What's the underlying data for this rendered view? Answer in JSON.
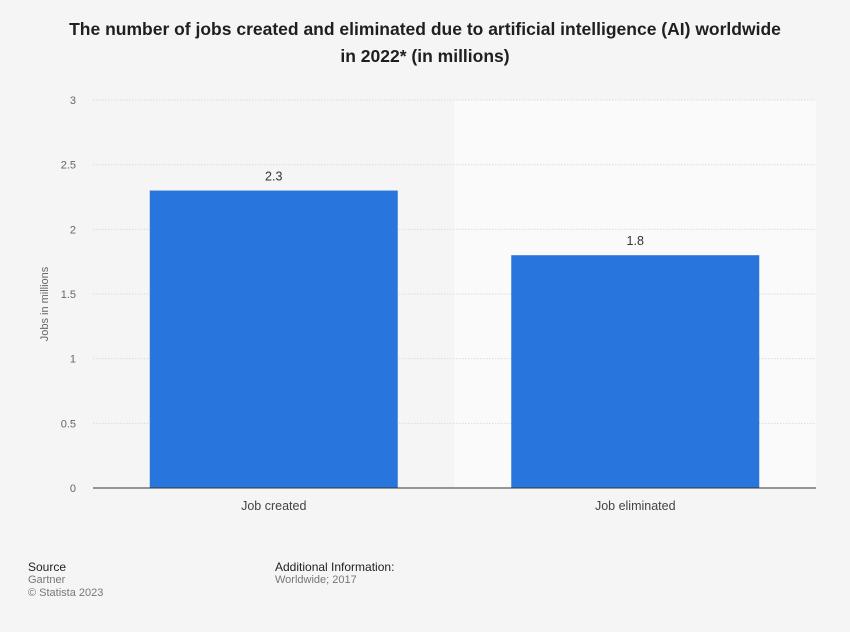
{
  "chart_data": {
    "type": "bar",
    "title": [
      "The number of jobs created and eliminated due to artificial intelligence (AI) worldwide",
      "in 2022* (in millions)"
    ],
    "categories": [
      "Job created",
      "Job eliminated"
    ],
    "values": [
      2.3,
      1.8
    ],
    "value_labels": [
      "2.3",
      "1.8"
    ],
    "ylabel": "Jobs in millions",
    "ylim": [
      0,
      3
    ],
    "yticks": [
      0,
      0.5,
      1,
      1.5,
      2,
      2.5,
      3
    ],
    "ytick_labels": [
      "0",
      "0.5",
      "1",
      "1.5",
      "2",
      "2.5",
      "3"
    ],
    "grid": true,
    "colors": {
      "bar": "#2876dd",
      "grid": "#dcdcdc",
      "axis": "#333333",
      "plot_bg_a": "#f5f5f5",
      "plot_bg_b": "#fafafa"
    }
  },
  "footer": {
    "source_heading": "Source",
    "source_lines": [
      "Gartner",
      "© Statista 2023"
    ],
    "info_heading": "Additional Information:",
    "info_lines": [
      "Worldwide; 2017"
    ]
  }
}
